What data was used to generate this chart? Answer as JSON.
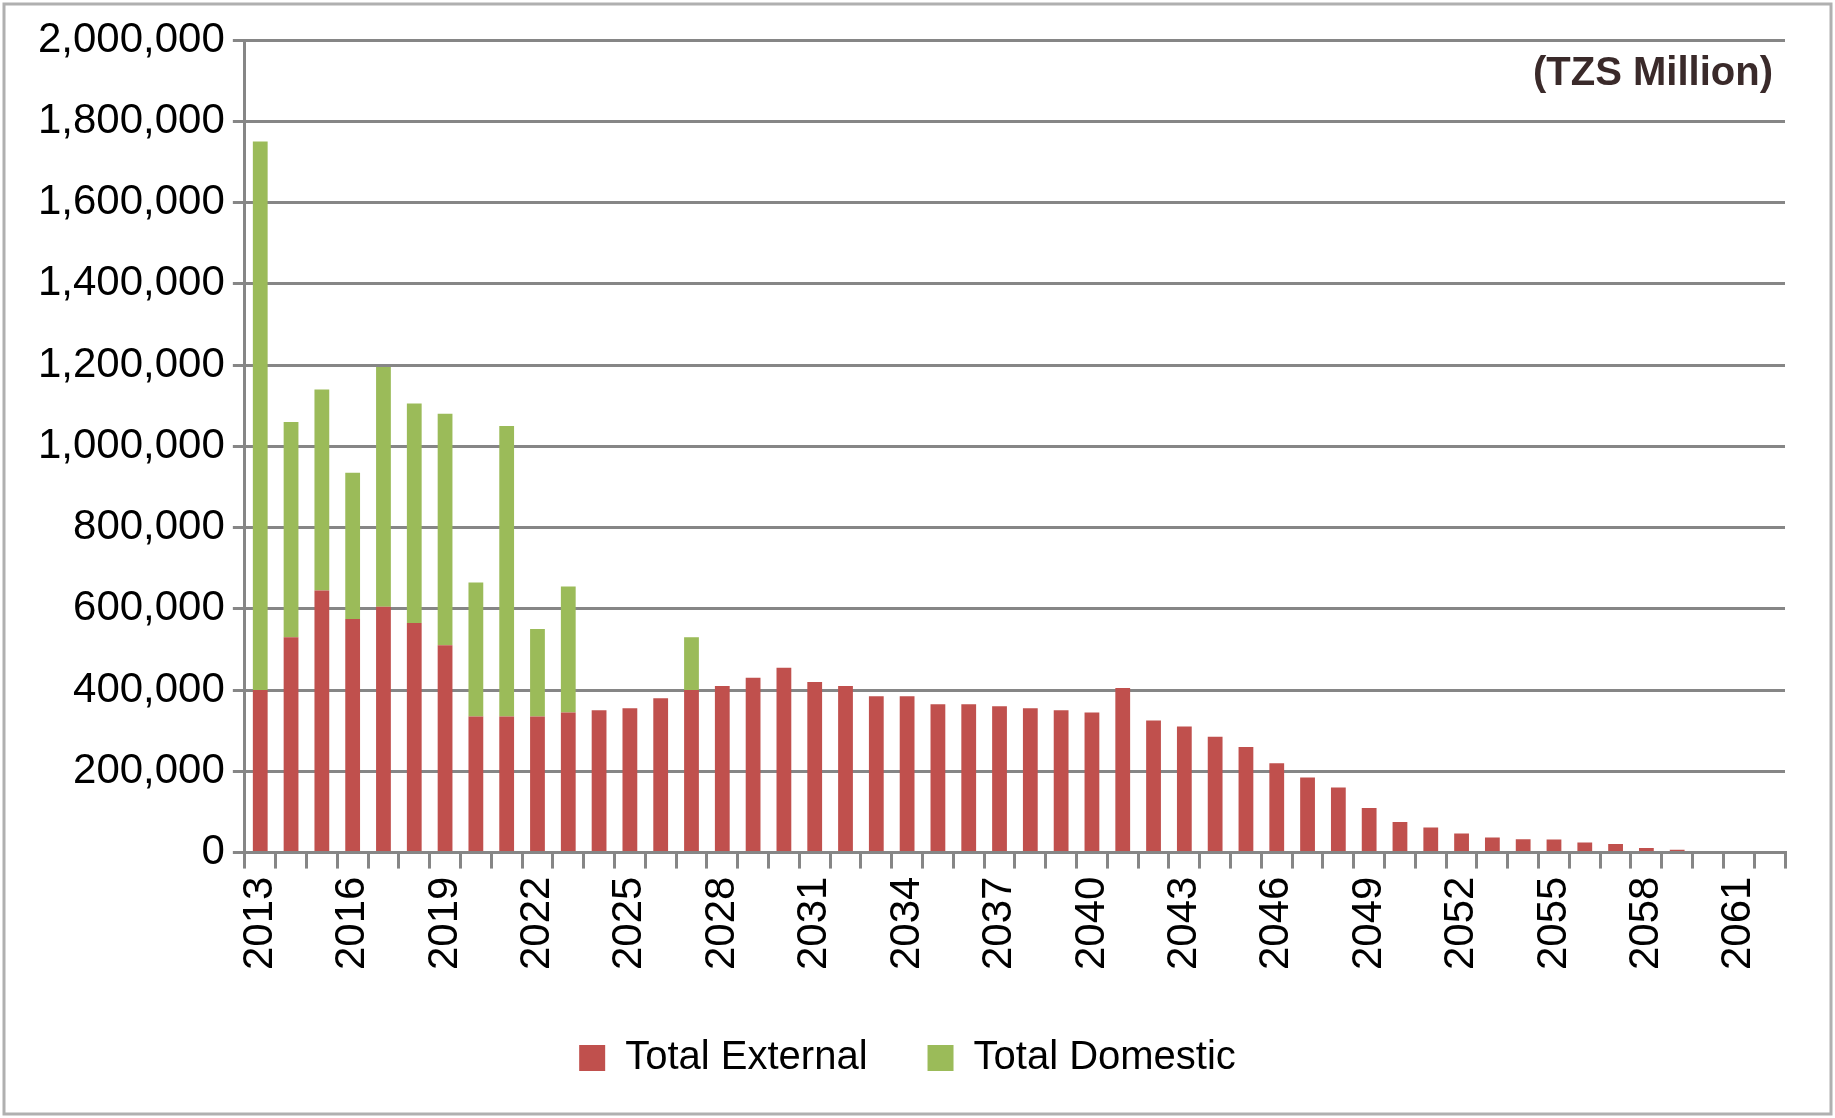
{
  "chart_data": {
    "type": "bar",
    "stacked": true,
    "categories": [
      "2013",
      null,
      null,
      "2016",
      null,
      null,
      "2019",
      null,
      null,
      "2022",
      null,
      null,
      "2025",
      null,
      null,
      "2028",
      null,
      null,
      "2031",
      null,
      null,
      "2034",
      null,
      null,
      "2037",
      null,
      null,
      "2040",
      null,
      null,
      "2043",
      null,
      null,
      "2046",
      null,
      null,
      "2049",
      null,
      null,
      "2052",
      null,
      null,
      "2055",
      null,
      null,
      "2058",
      null,
      null,
      "2061",
      null
    ],
    "series": [
      {
        "name": "Total External",
        "color": "#c0504d",
        "values": [
          400000,
          530000,
          645000,
          575000,
          605000,
          565000,
          510000,
          335000,
          335000,
          335000,
          345000,
          350000,
          355000,
          380000,
          400000,
          410000,
          430000,
          455000,
          420000,
          410000,
          385000,
          385000,
          365000,
          365000,
          360000,
          355000,
          350000,
          345000,
          405000,
          325000,
          310000,
          285000,
          260000,
          220000,
          185000,
          160000,
          110000,
          75000,
          62000,
          47000,
          37000,
          33000,
          32000,
          25000,
          21000,
          11000,
          7000,
          null,
          null,
          null
        ]
      },
      {
        "name": "Total Domestic",
        "color": "#9bbb59",
        "values": [
          1350000,
          530000,
          495000,
          360000,
          590000,
          540000,
          570000,
          330000,
          715000,
          215000,
          310000,
          null,
          null,
          null,
          130000,
          null,
          null,
          null,
          null,
          null,
          null,
          null,
          null,
          null,
          null,
          null,
          null,
          null,
          null,
          null,
          null,
          null,
          null,
          null,
          null,
          null,
          null,
          null,
          null,
          null,
          null,
          null,
          null,
          null,
          null,
          null,
          null,
          null,
          null,
          null
        ]
      }
    ],
    "ylim": [
      0,
      2000000
    ],
    "yticks": [
      0,
      {
        "value": 200000,
        "label": "200,000"
      },
      {
        "value": 400000,
        "label": "400,000"
      },
      {
        "value": 600000,
        "label": "600,000"
      },
      {
        "value": 800000,
        "label": "800,000"
      },
      {
        "value": 1000000,
        "label": "1,000,000"
      },
      {
        "value": 1200000,
        "label": "1,200,000"
      },
      {
        "value": 1400000,
        "label": "1,400,000"
      },
      {
        "value": 1600000,
        "label": "1,600,000"
      },
      {
        "value": 1800000,
        "label": "1,800,000"
      },
      {
        "value": 2000000,
        "label": "2,000,000"
      }
    ],
    "grid": "y",
    "legend": "bottom",
    "annotations": [
      "(TZS Million)"
    ]
  }
}
